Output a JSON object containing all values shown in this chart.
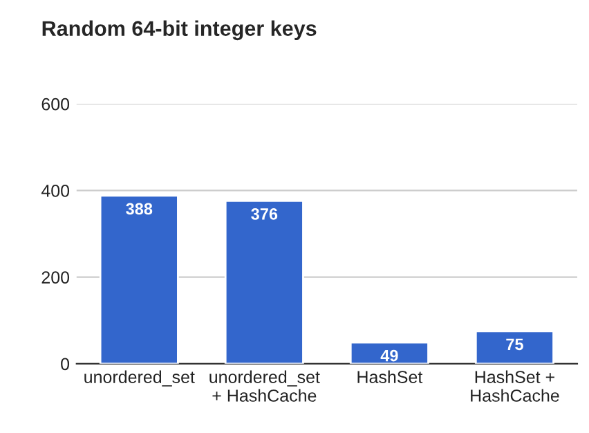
{
  "chart_data": {
    "type": "bar",
    "title": "Random 64-bit integer keys",
    "categories": [
      "unordered_set",
      "unordered_set\n+ HashCache",
      "HashSet",
      "HashSet +\nHashCache"
    ],
    "values": [
      388,
      376,
      49,
      75
    ],
    "color": "#3366cc",
    "ylim": [
      0,
      600
    ],
    "yticks": [
      0,
      200,
      400,
      600
    ],
    "grid": "y",
    "data_labels": true
  }
}
